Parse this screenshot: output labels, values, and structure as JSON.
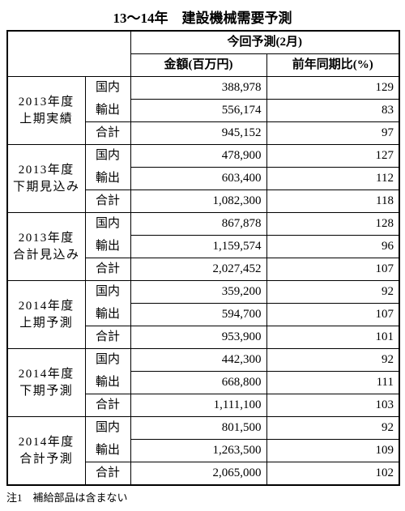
{
  "title": "13～14年　建設機械需要予測",
  "title_fontsize": "17px",
  "header": {
    "blank": "",
    "group": "今回予測(2月)",
    "col_amount": "金額(百万円)",
    "col_yoy": "前年同期比(%)"
  },
  "row_labels": {
    "domestic": "国内",
    "export": "輸出",
    "total": "合計"
  },
  "periods": [
    {
      "name_line1": "2013年度",
      "name_line2": "上期実績",
      "domestic": {
        "amount": "388,978",
        "yoy": "129"
      },
      "export": {
        "amount": "556,174",
        "yoy": "83"
      },
      "total": {
        "amount": "945,152",
        "yoy": "97"
      }
    },
    {
      "name_line1": "2013年度",
      "name_line2": "下期見込み",
      "domestic": {
        "amount": "478,900",
        "yoy": "127"
      },
      "export": {
        "amount": "603,400",
        "yoy": "112"
      },
      "total": {
        "amount": "1,082,300",
        "yoy": "118"
      }
    },
    {
      "name_line1": "2013年度",
      "name_line2": "合計見込み",
      "domestic": {
        "amount": "867,878",
        "yoy": "128"
      },
      "export": {
        "amount": "1,159,574",
        "yoy": "96"
      },
      "total": {
        "amount": "2,027,452",
        "yoy": "107"
      }
    },
    {
      "name_line1": "2014年度",
      "name_line2": "上期予測",
      "domestic": {
        "amount": "359,200",
        "yoy": "92"
      },
      "export": {
        "amount": "594,700",
        "yoy": "107"
      },
      "total": {
        "amount": "953,900",
        "yoy": "101"
      }
    },
    {
      "name_line1": "2014年度",
      "name_line2": "下期予測",
      "domestic": {
        "amount": "442,300",
        "yoy": "92"
      },
      "export": {
        "amount": "668,800",
        "yoy": "111"
      },
      "total": {
        "amount": "1,111,100",
        "yoy": "103"
      }
    },
    {
      "name_line1": "2014年度",
      "name_line2": "合計予測",
      "domestic": {
        "amount": "801,500",
        "yoy": "92"
      },
      "export": {
        "amount": "1,263,500",
        "yoy": "109"
      },
      "total": {
        "amount": "2,065,000",
        "yoy": "102"
      }
    }
  ],
  "footnote": "注1　補給部品は含まない",
  "styles": {
    "body_fontsize": "15px",
    "header_fontsize": "15px",
    "footnote_fontsize": "13px",
    "text_color": "#000000",
    "background_color": "#ffffff",
    "border_color": "#000000"
  }
}
